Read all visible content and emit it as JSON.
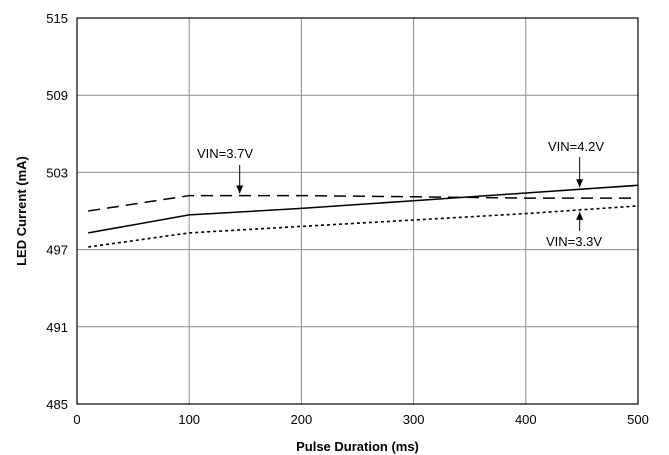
{
  "chart_data": {
    "type": "line",
    "title": "",
    "xlabel": "Pulse Duration (ms)",
    "ylabel": "LED Current (mA)",
    "xlim": [
      0,
      500
    ],
    "ylim": [
      485,
      515
    ],
    "xticks": [
      0,
      100,
      200,
      300,
      400,
      500
    ],
    "yticks": [
      485,
      491,
      497,
      503,
      509,
      515
    ],
    "grid": true,
    "legend": "none",
    "series": [
      {
        "name": "VIN=4.2V",
        "style": "solid",
        "x": [
          10,
          100,
          200,
          300,
          400,
          500
        ],
        "y": [
          498.3,
          499.7,
          500.2,
          500.8,
          501.4,
          502.0
        ]
      },
      {
        "name": "VIN=3.7V",
        "style": "dashed",
        "x": [
          10,
          100,
          200,
          300,
          400,
          500
        ],
        "y": [
          500.0,
          501.2,
          501.2,
          501.1,
          501.0,
          501.0
        ]
      },
      {
        "name": "VIN=3.3V",
        "style": "dotted",
        "x": [
          10,
          100,
          200,
          300,
          400,
          500
        ],
        "y": [
          497.2,
          498.3,
          498.8,
          499.3,
          499.8,
          500.4
        ]
      }
    ],
    "annotations": [
      {
        "text": "VIN=3.7V",
        "series": "VIN=3.7V",
        "x": 145
      },
      {
        "text": "VIN=4.2V",
        "series": "VIN=4.2V",
        "x": 448
      },
      {
        "text": "VIN=3.3V",
        "series": "VIN=3.3V",
        "x": 448
      }
    ]
  }
}
